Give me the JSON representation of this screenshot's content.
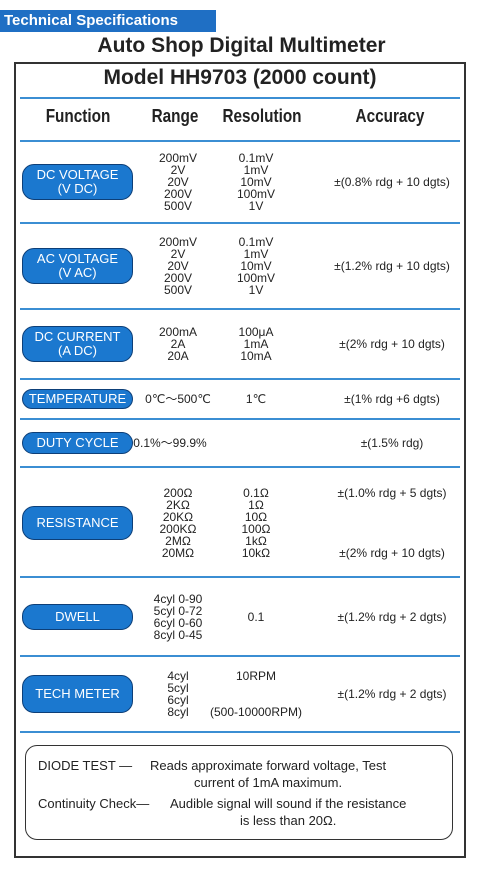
{
  "header": {
    "tag": "Technical Specifications",
    "title": "Auto Shop Digital Multimeter"
  },
  "table": {
    "model": "Model HH9703 (2000 count)",
    "columns": [
      "Function",
      "Range",
      "Resolution",
      "Accuracy"
    ],
    "rows": [
      {
        "function": [
          "DC VOLTAGE",
          "(V DC)"
        ],
        "range": [
          "200mV",
          "2V",
          "20V",
          "200V",
          "500V"
        ],
        "resolution": [
          "0.1mV",
          "1mV",
          "10mV",
          "100mV",
          "1V"
        ],
        "accuracy": [
          "±(0.8% rdg + 10 dgts)"
        ]
      },
      {
        "function": [
          "AC VOLTAGE",
          "(V AC)"
        ],
        "range": [
          "200mV",
          "2V",
          "20V",
          "200V",
          "500V"
        ],
        "resolution": [
          "0.1mV",
          "1mV",
          "10mV",
          "100mV",
          "1V"
        ],
        "accuracy": [
          "±(1.2% rdg + 10 dgts)"
        ]
      },
      {
        "function": [
          "DC CURRENT",
          "(A DC)"
        ],
        "range": [
          "200mA",
          "2A",
          "20A"
        ],
        "resolution": [
          "100μA",
          "1mA",
          "10mA"
        ],
        "accuracy": [
          "±(2% rdg + 10 dgts)"
        ]
      },
      {
        "function": [
          "TEMPERATURE"
        ],
        "range": [
          "0℃～500℃"
        ],
        "resolution": [
          "1℃"
        ],
        "accuracy": [
          "±(1% rdg +6 dgts)"
        ]
      },
      {
        "function": [
          "DUTY CYCLE"
        ],
        "range": [
          "0.1%～99.9%"
        ],
        "resolution": [],
        "accuracy": [
          "±(1.5% rdg)"
        ]
      },
      {
        "function": [
          "RESISTANCE"
        ],
        "range": [
          "200Ω",
          "2KΩ",
          "20KΩ",
          "200KΩ",
          "2MΩ",
          "20MΩ"
        ],
        "resolution": [
          "0.1Ω",
          "1Ω",
          "10Ω",
          "100Ω",
          "1kΩ",
          "10kΩ"
        ],
        "accuracy": [
          "±(1.0% rdg + 5 dgts)",
          "±(2% rdg + 10 dgts)"
        ]
      },
      {
        "function": [
          "DWELL"
        ],
        "range": [
          "4cyl 0-90",
          "5cyl 0-72",
          "6cyl 0-60",
          "8cyl 0-45"
        ],
        "resolution": [
          "0.1"
        ],
        "accuracy": [
          "±(1.2% rdg + 2 dgts)"
        ]
      },
      {
        "function": [
          "TECH METER"
        ],
        "range": [
          "4cyl",
          "5cyl",
          "6cyl",
          "8cyl"
        ],
        "resolution": [
          "10RPM",
          "(500-10000RPM)"
        ],
        "accuracy": [
          "±(1.2% rdg + 2 dgts)"
        ]
      }
    ]
  },
  "notes": [
    {
      "label": "DIODE TEST —",
      "text": [
        "Reads approximate forward voltage, Test",
        "current of 1mA maximum."
      ]
    },
    {
      "label": "Continuity Check—",
      "text": [
        "Audible signal will sound if the resistance",
        "is less than 20Ω."
      ]
    }
  ]
}
